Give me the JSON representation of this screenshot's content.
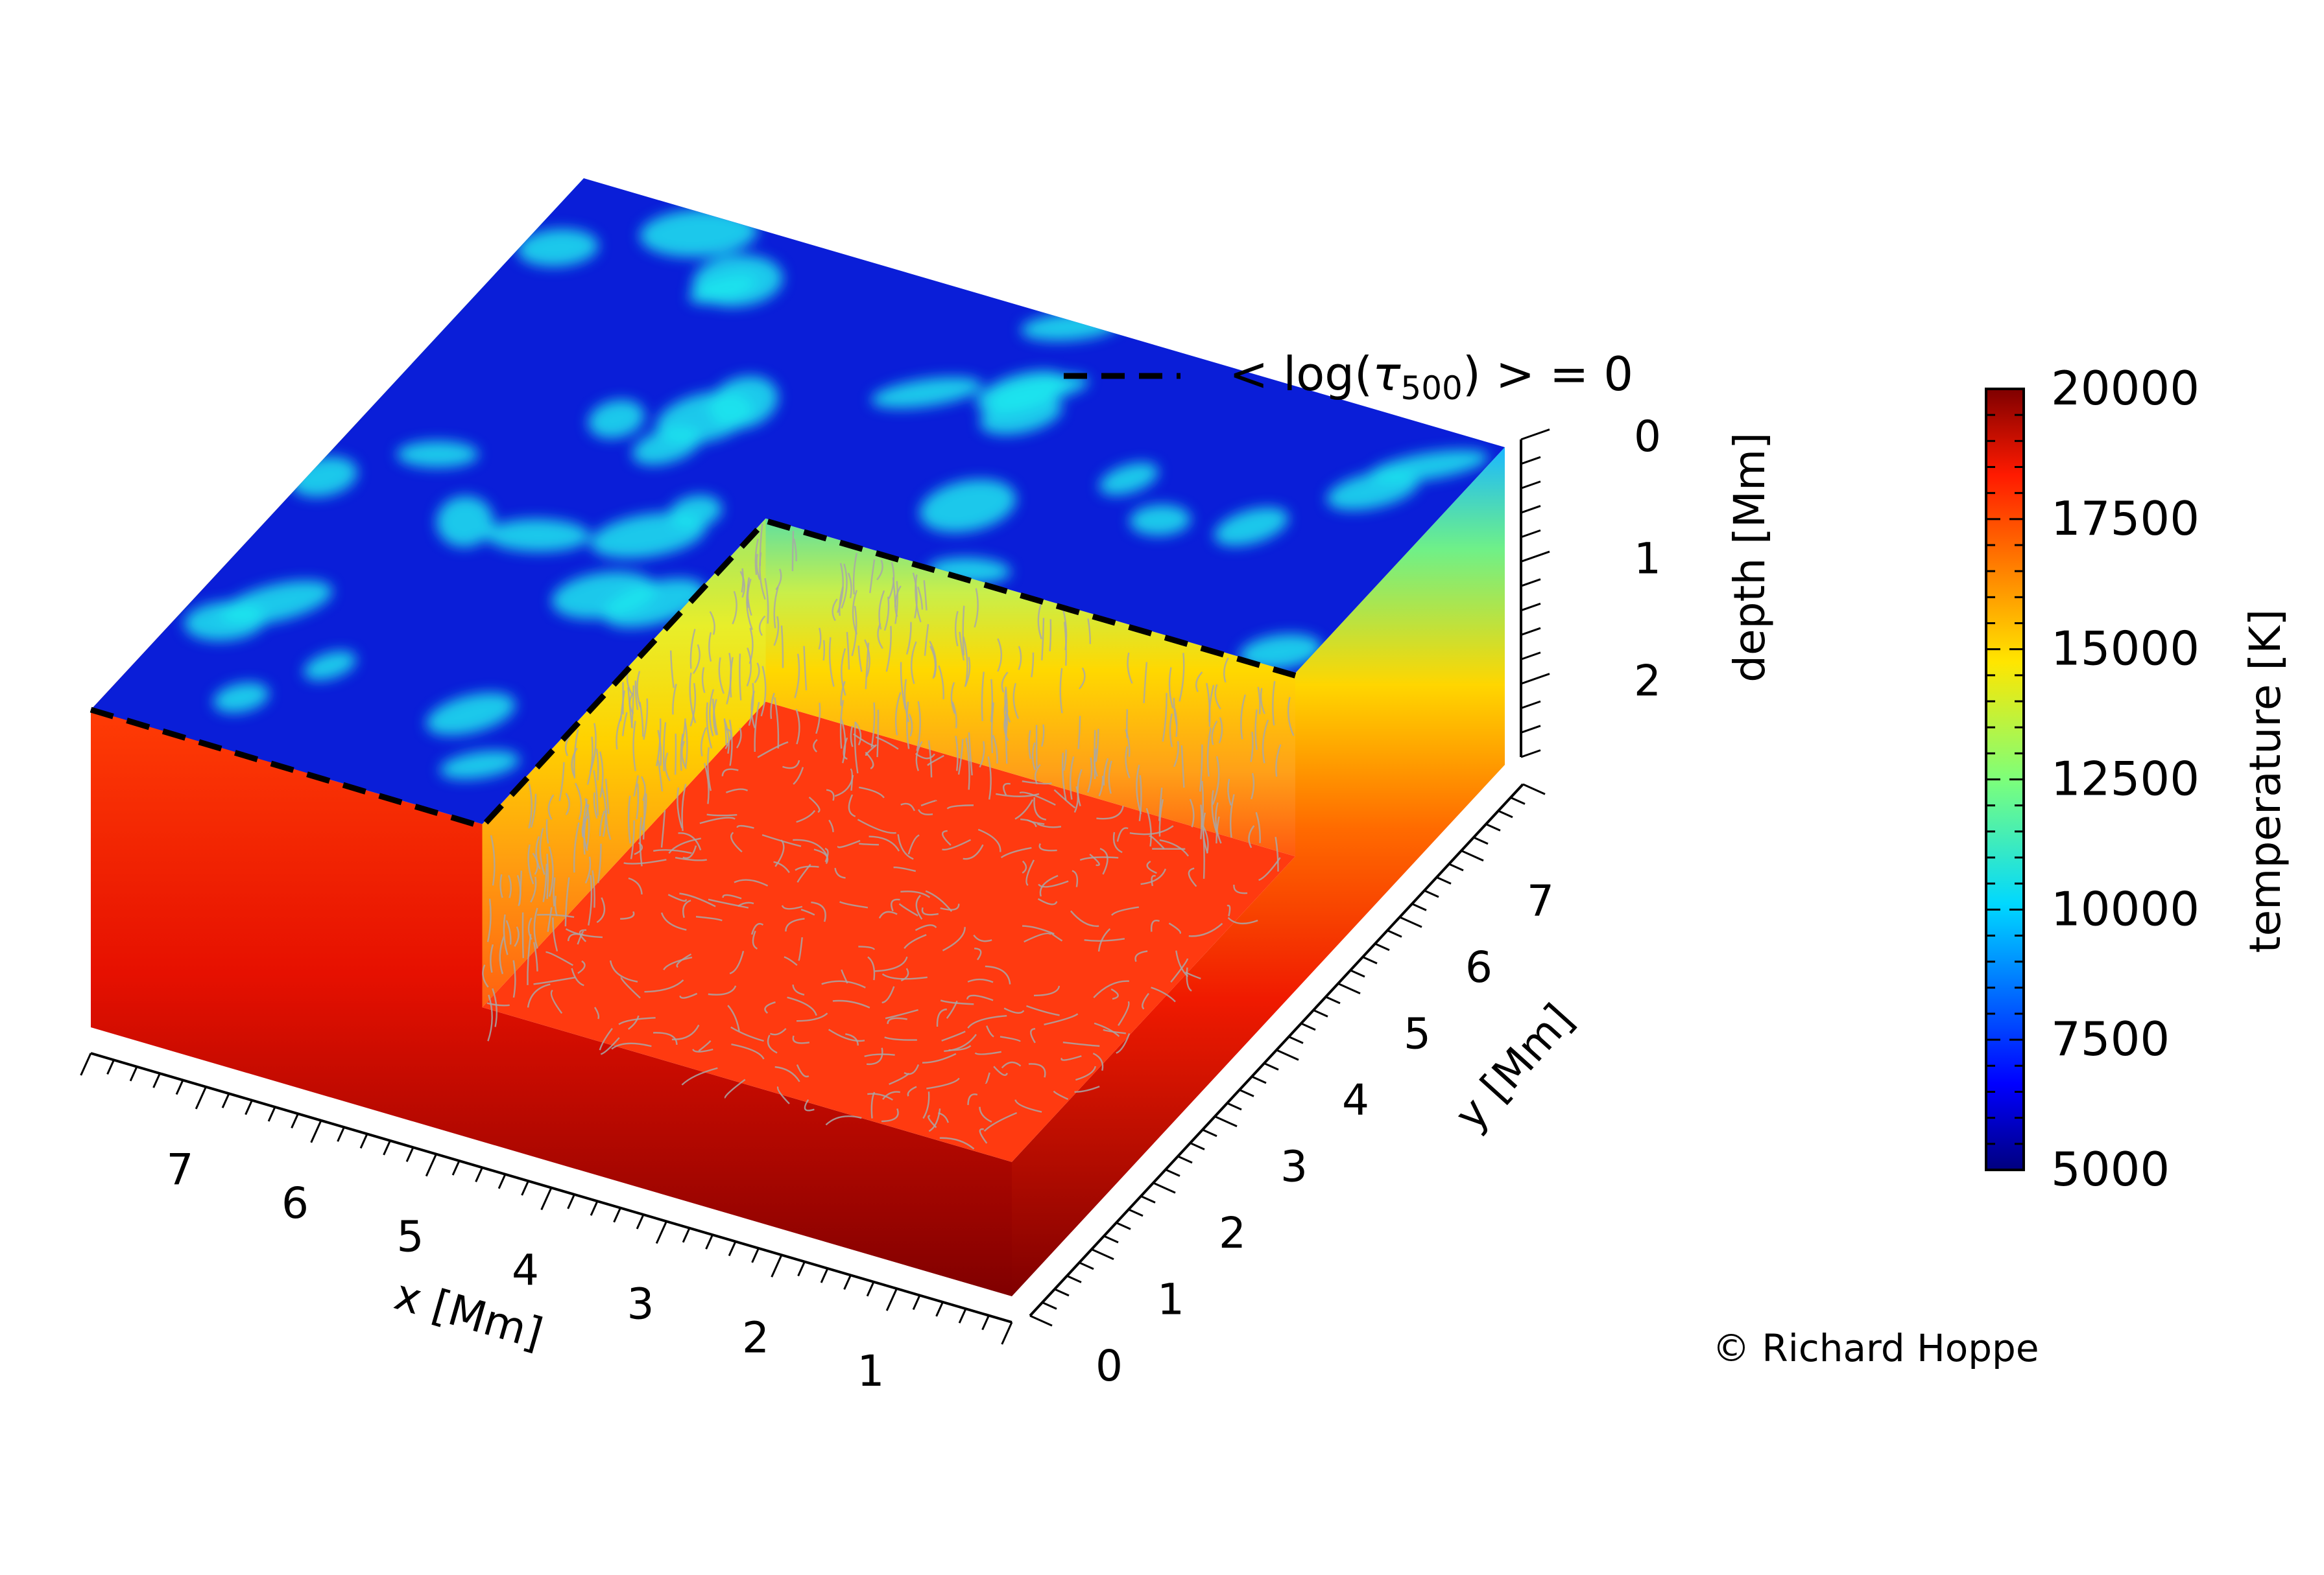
{
  "chart_data": {
    "type": "volume-3d",
    "legend": {
      "label_prefix": "< log(",
      "label_symbol": "τ",
      "label_subscript": "500",
      "label_suffix": ") > = 0",
      "line_style": "dashed"
    },
    "x_axis": {
      "label": "x [Mm]",
      "ticks": [
        "1",
        "2",
        "3",
        "4",
        "5",
        "6",
        "7"
      ],
      "range": [
        0,
        8
      ]
    },
    "y_axis": {
      "label": "y [Mm]",
      "ticks": [
        "0",
        "1",
        "2",
        "3",
        "4",
        "5",
        "6",
        "7"
      ],
      "range": [
        0,
        8
      ]
    },
    "z_axis": {
      "label": "depth [Mm]",
      "ticks": [
        "0",
        "1",
        "2"
      ],
      "range": [
        0,
        2.6
      ]
    },
    "colorbar": {
      "label": "temperature [K]",
      "ticks": [
        "5000",
        "7500",
        "10000",
        "12500",
        "15000",
        "17500",
        "20000"
      ],
      "min": 5000,
      "max": 20000,
      "colormap": "jet"
    },
    "colors": {
      "surface_dark": "#0a1ed8",
      "surface_bright": "#1ee6ee",
      "deep": "#8b0000",
      "cut_floor": "#ff3a10",
      "streamlines": "#a8a8a8"
    }
  },
  "copyright": "© Richard Hoppe"
}
